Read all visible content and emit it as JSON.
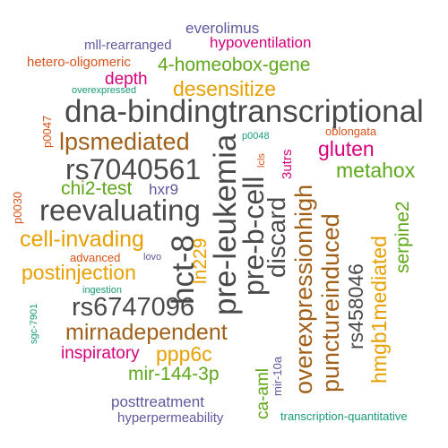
{
  "palette": {
    "gray": "#4a4a4a",
    "magenta": "#d6007a",
    "orange": "#e8a000",
    "green": "#5ea81a",
    "purple": "#5e5a9e",
    "brown": "#a0601a",
    "teal": "#1a9a78",
    "red_orange": "#d9531a"
  },
  "words": [
    {
      "text": "everolimus",
      "color": "#5e5a9e"
    },
    {
      "text": "mll-rearranged",
      "color": "#5e5a9e"
    },
    {
      "text": "hypoventilation",
      "color": "#d6007a"
    },
    {
      "text": "hetero-oligomeric",
      "color": "#d9531a"
    },
    {
      "text": "4-homeobox-gene",
      "color": "#5ea81a"
    },
    {
      "text": "depth",
      "color": "#d6007a"
    },
    {
      "text": "overexpressed",
      "color": "#1a9a78"
    },
    {
      "text": "desensitize",
      "color": "#e8a000"
    },
    {
      "text": "dna-bindingtranscriptional",
      "color": "#4a4a4a"
    },
    {
      "text": "p0047",
      "color": "#d9531a"
    },
    {
      "text": "oblongata",
      "color": "#d9531a"
    },
    {
      "text": "p0048",
      "color": "#1a9a78"
    },
    {
      "text": "lpsmediated",
      "color": "#a0601a"
    },
    {
      "text": "gluten",
      "color": "#d6007a"
    },
    {
      "text": "rs7040561",
      "color": "#4a4a4a"
    },
    {
      "text": "metahox",
      "color": "#5ea81a"
    },
    {
      "text": "chi2-test",
      "color": "#5ea81a"
    },
    {
      "text": "hxr9",
      "color": "#5e5a9e"
    },
    {
      "text": "p0030",
      "color": "#d9531a"
    },
    {
      "text": "reevaluating",
      "color": "#4a4a4a"
    },
    {
      "text": "cell-invading",
      "color": "#e8a000"
    },
    {
      "text": "advanced",
      "color": "#d9531a"
    },
    {
      "text": "lovo",
      "color": "#5e5a9e"
    },
    {
      "text": "postinjection",
      "color": "#e8a000"
    },
    {
      "text": "ingestion",
      "color": "#1a9a78"
    },
    {
      "text": "sgc-7901",
      "color": "#1a9a78"
    },
    {
      "text": "rs6747096",
      "color": "#4a4a4a"
    },
    {
      "text": "mirnadependent",
      "color": "#a0601a"
    },
    {
      "text": "inspiratory",
      "color": "#d6007a"
    },
    {
      "text": "ppp6c",
      "color": "#e8a000"
    },
    {
      "text": "mir-144-3p",
      "color": "#5ea81a"
    },
    {
      "text": "posttreatment",
      "color": "#5e5a9e"
    },
    {
      "text": "hyperpermeability",
      "color": "#5e5a9e"
    },
    {
      "text": "transcription-quantitative",
      "color": "#1a9a78"
    },
    {
      "text": "hct-8",
      "color": "#4a4a4a"
    },
    {
      "text": "pre-leukemia",
      "color": "#4a4a4a"
    },
    {
      "text": "ln229",
      "color": "#e8a000"
    },
    {
      "text": "pre-b-cell",
      "color": "#4a4a4a"
    },
    {
      "text": "discard",
      "color": "#4a4a4a"
    },
    {
      "text": "lcls",
      "color": "#d9531a"
    },
    {
      "text": "3utrs",
      "color": "#d6007a"
    },
    {
      "text": "overexpressionhigh",
      "color": "#a0601a"
    },
    {
      "text": "punctureinduced",
      "color": "#a0601a"
    },
    {
      "text": "rs458046",
      "color": "#4a4a4a"
    },
    {
      "text": "hmgb1mediated",
      "color": "#e8a000"
    },
    {
      "text": "serpine2",
      "color": "#5ea81a"
    },
    {
      "text": "ca-aml",
      "color": "#5ea81a"
    },
    {
      "text": "mir-10a",
      "color": "#5e5a9e"
    }
  ]
}
